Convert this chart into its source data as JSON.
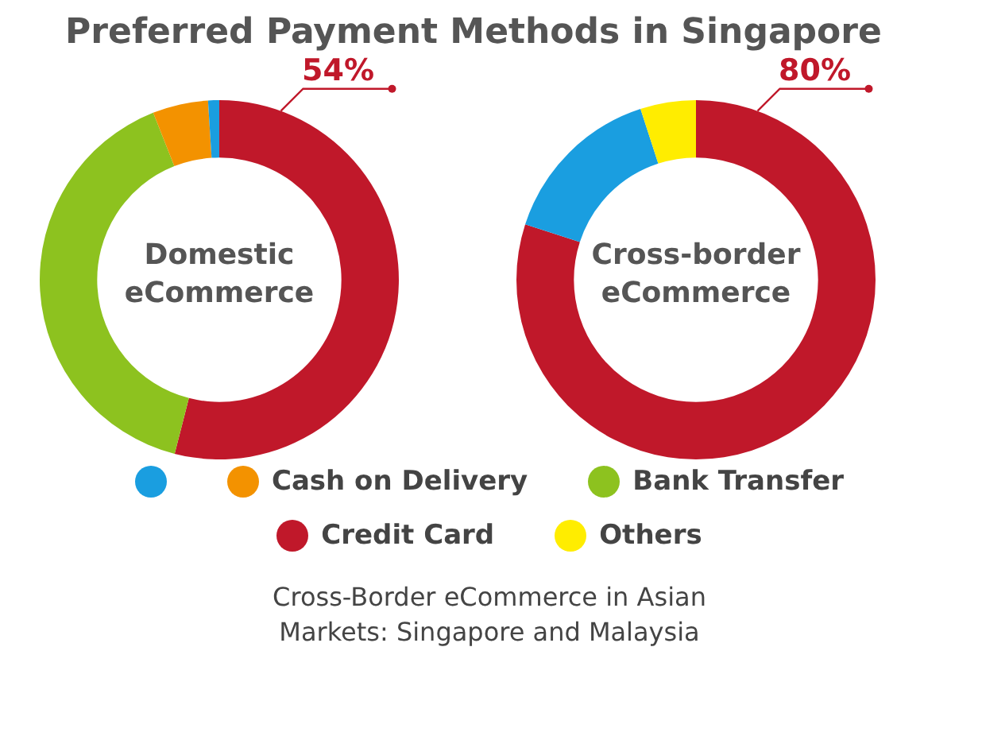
{
  "chart_data": [
    {
      "type": "donut",
      "title": "Preferred Payment Methods in Singapore",
      "subtitle": "Domestic eCommerce",
      "categories": [
        "Credit Card",
        "Bank Transfer",
        "Cash on Delivery",
        null
      ],
      "values": [
        54,
        40,
        5,
        1
      ],
      "colors": [
        "#c0182a",
        "#8dc21f",
        "#f39200",
        "#1a9ee0"
      ],
      "value_labels": [
        "54%",
        null,
        null,
        null
      ],
      "legend": "bottom"
    },
    {
      "type": "donut",
      "subtitle": "Cross-border eCommerce",
      "categories": [
        null,
        null,
        "Others"
      ],
      "values": [
        80,
        15,
        5
      ],
      "colors": [
        "#c0182a",
        "#1a9ee0",
        "#ffed00"
      ],
      "value_labels": [
        "80%",
        null,
        null
      ],
      "legend": "bottom",
      "annotations": [
        "Cross-Border eCommerce in Asian Markets: Singapore and Malaysia"
      ]
    }
  ]
}
